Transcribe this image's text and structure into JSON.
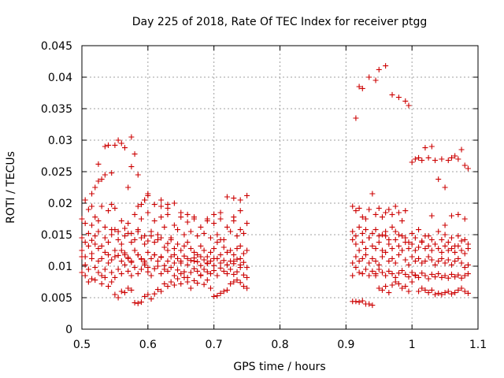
{
  "chart_data": {
    "type": "scatter",
    "title": "Day 225 of 2018, Rate Of TEC Index for receiver ptgg",
    "xlabel": "GPS time / hours",
    "ylabel": "ROTI / TECUs",
    "xlim": [
      0.5,
      1.1
    ],
    "ylim": [
      0,
      0.045
    ],
    "xticks": [
      "0.5",
      "0.6",
      "0.7",
      "0.8",
      "0.9",
      "1",
      "1.1"
    ],
    "yticks": [
      "0",
      "0.005",
      "0.01",
      "0.015",
      "0.02",
      "0.025",
      "0.03",
      "0.035",
      "0.04",
      "0.045"
    ],
    "grid": true,
    "marker": "plus",
    "color": "#cc0000",
    "series": [
      {
        "name": "ROTI",
        "x": [
          0.5,
          0.505,
          0.51,
          0.515,
          0.52,
          0.525,
          0.53,
          0.535,
          0.54,
          0.545,
          0.55,
          0.555,
          0.56,
          0.565,
          0.57,
          0.575,
          0.58,
          0.585,
          0.59,
          0.595,
          0.6,
          0.605,
          0.61,
          0.615,
          0.62,
          0.625,
          0.63,
          0.635,
          0.64,
          0.645,
          0.65,
          0.655,
          0.66,
          0.665,
          0.67,
          0.675,
          0.68,
          0.685,
          0.69,
          0.695,
          0.7,
          0.705,
          0.71,
          0.715,
          0.72,
          0.725,
          0.73,
          0.735,
          0.74,
          0.745,
          0.75,
          0.5,
          0.505,
          0.51,
          0.515,
          0.52,
          0.525,
          0.53,
          0.535,
          0.54,
          0.545,
          0.55,
          0.555,
          0.56,
          0.565,
          0.57,
          0.575,
          0.58,
          0.585,
          0.59,
          0.595,
          0.6,
          0.605,
          0.61,
          0.615,
          0.62,
          0.625,
          0.63,
          0.635,
          0.64,
          0.645,
          0.65,
          0.655,
          0.66,
          0.665,
          0.67,
          0.675,
          0.68,
          0.685,
          0.69,
          0.695,
          0.7,
          0.705,
          0.71,
          0.715,
          0.72,
          0.725,
          0.73,
          0.735,
          0.74,
          0.745,
          0.75,
          0.5,
          0.505,
          0.51,
          0.515,
          0.52,
          0.525,
          0.53,
          0.535,
          0.54,
          0.545,
          0.55,
          0.555,
          0.56,
          0.565,
          0.57,
          0.575,
          0.58,
          0.585,
          0.59,
          0.595,
          0.6,
          0.605,
          0.61,
          0.615,
          0.62,
          0.625,
          0.63,
          0.635,
          0.64,
          0.645,
          0.65,
          0.655,
          0.66,
          0.665,
          0.67,
          0.675,
          0.68,
          0.685,
          0.69,
          0.695,
          0.7,
          0.705,
          0.71,
          0.715,
          0.72,
          0.725,
          0.73,
          0.735,
          0.74,
          0.745,
          0.75,
          0.5,
          0.505,
          0.51,
          0.515,
          0.52,
          0.525,
          0.53,
          0.535,
          0.54,
          0.545,
          0.55,
          0.555,
          0.56,
          0.565,
          0.57,
          0.575,
          0.58,
          0.585,
          0.59,
          0.595,
          0.6,
          0.605,
          0.61,
          0.615,
          0.62,
          0.625,
          0.63,
          0.635,
          0.64,
          0.645,
          0.65,
          0.655,
          0.66,
          0.665,
          0.67,
          0.675,
          0.68,
          0.685,
          0.69,
          0.695,
          0.7,
          0.705,
          0.71,
          0.715,
          0.72,
          0.725,
          0.73,
          0.735,
          0.74,
          0.745,
          0.75,
          0.5,
          0.51,
          0.52,
          0.53,
          0.54,
          0.55,
          0.56,
          0.57,
          0.58,
          0.59,
          0.6,
          0.61,
          0.62,
          0.63,
          0.64,
          0.65,
          0.66,
          0.67,
          0.68,
          0.69,
          0.7,
          0.71,
          0.72,
          0.73,
          0.74,
          0.75,
          0.505,
          0.515,
          0.525,
          0.535,
          0.545,
          0.555,
          0.565,
          0.575,
          0.585,
          0.595,
          0.605,
          0.615,
          0.625,
          0.635,
          0.645,
          0.655,
          0.665,
          0.675,
          0.685,
          0.695,
          0.705,
          0.715,
          0.725,
          0.735,
          0.745,
          0.505,
          0.515,
          0.52,
          0.525,
          0.53,
          0.535,
          0.54,
          0.545,
          0.55,
          0.555,
          0.56,
          0.565,
          0.57,
          0.575,
          0.58,
          0.585,
          0.59,
          0.595,
          0.6,
          0.61,
          0.62,
          0.63,
          0.64,
          0.72,
          0.73,
          0.74,
          0.75,
          0.515,
          0.525,
          0.535,
          0.545,
          0.575,
          0.585,
          0.595,
          0.6,
          0.62,
          0.63,
          0.65,
          0.66,
          0.67,
          0.69,
          0.7,
          0.71,
          0.73,
          0.74,
          0.55,
          0.56,
          0.565,
          0.57,
          0.575,
          0.58,
          0.585,
          0.59,
          0.595,
          0.6,
          0.61,
          0.62,
          0.63,
          0.64,
          0.65,
          0.66,
          0.67,
          0.68,
          0.69,
          0.7,
          0.71,
          0.72,
          0.73,
          0.74,
          0.91,
          0.915,
          0.92,
          0.925,
          0.93,
          0.935,
          0.94,
          0.945,
          0.95,
          0.955,
          0.96,
          0.965,
          0.97,
          0.975,
          0.98,
          0.985,
          0.99,
          0.995,
          1,
          1.005,
          1.01,
          1.015,
          1.02,
          1.025,
          1.03,
          1.035,
          1.04,
          1.045,
          1.05,
          1.055,
          1.06,
          1.065,
          1.07,
          1.075,
          1.08,
          1.085,
          0.91,
          0.915,
          0.92,
          0.925,
          0.93,
          0.935,
          0.94,
          0.945,
          0.95,
          0.955,
          0.96,
          0.965,
          0.97,
          0.975,
          0.98,
          0.985,
          0.99,
          0.995,
          1,
          1.005,
          1.01,
          1.015,
          1.02,
          1.025,
          1.03,
          1.035,
          1.04,
          1.045,
          1.05,
          1.055,
          1.06,
          1.065,
          1.07,
          1.075,
          1.08,
          1.085,
          0.91,
          0.915,
          0.92,
          0.925,
          0.93,
          0.935,
          0.94,
          0.945,
          0.95,
          0.955,
          0.96,
          0.965,
          0.97,
          0.975,
          0.98,
          0.985,
          0.99,
          0.995,
          1,
          1.005,
          1.01,
          1.015,
          1.02,
          1.025,
          1.03,
          1.035,
          1.04,
          1.045,
          1.05,
          1.055,
          1.06,
          1.065,
          1.07,
          1.075,
          1.08,
          1.085,
          0.91,
          0.915,
          0.92,
          0.925,
          0.93,
          0.935,
          0.94,
          0.945,
          0.95,
          0.955,
          0.96,
          0.965,
          0.97,
          0.975,
          0.98,
          0.985,
          0.99,
          0.995,
          1,
          1.005,
          1.01,
          1.015,
          1.02,
          1.025,
          1.03,
          1.035,
          1.04,
          1.045,
          1.05,
          1.055,
          1.06,
          1.065,
          1.07,
          1.075,
          1.08,
          1.085,
          0.91,
          0.92,
          0.93,
          0.94,
          0.95,
          0.96,
          0.97,
          0.98,
          0.99,
          1,
          1.01,
          1.02,
          1.03,
          1.04,
          1.05,
          1.06,
          1.07,
          1.08,
          0.915,
          0.925,
          0.935,
          0.945,
          0.955,
          0.965,
          0.975,
          0.985,
          0.995,
          1.005,
          1.015,
          1.025,
          1.035,
          1.045,
          1.055,
          1.065,
          1.075,
          1.085,
          0.91,
          0.915,
          0.92,
          0.925,
          0.93,
          0.935,
          0.94,
          0.945,
          0.95,
          0.955,
          0.96,
          0.965,
          0.97,
          0.975,
          0.98,
          0.985,
          0.99,
          1.0,
          1.005,
          1.01,
          1.015,
          1.02,
          1.025,
          1.03,
          1.035,
          1.04,
          1.045,
          1.05,
          1.055,
          1.06,
          1.065,
          1.07,
          1.075,
          1.08,
          1.085,
          0.915,
          0.92,
          0.925,
          0.935,
          0.945,
          0.95,
          0.96,
          0.97,
          0.98,
          0.99,
          0.995,
          1.03,
          1.05,
          1.06,
          1.07,
          1.08
        ],
        "y": [
          0.009,
          0.0085,
          0.0075,
          0.008,
          0.0078,
          0.009,
          0.0072,
          0.0082,
          0.0068,
          0.0075,
          0.0055,
          0.005,
          0.006,
          0.0058,
          0.0065,
          0.0062,
          0.0042,
          0.0041,
          0.0043,
          0.0052,
          0.0055,
          0.0048,
          0.0056,
          0.0063,
          0.006,
          0.0072,
          0.0068,
          0.0075,
          0.007,
          0.008,
          0.0072,
          0.0082,
          0.0075,
          0.0065,
          0.0077,
          0.0073,
          0.0085,
          0.0071,
          0.0078,
          0.0065,
          0.0052,
          0.0053,
          0.0057,
          0.006,
          0.0062,
          0.0072,
          0.0075,
          0.0078,
          0.0074,
          0.0068,
          0.0065,
          0.0115,
          0.0102,
          0.0095,
          0.0112,
          0.0098,
          0.0108,
          0.0085,
          0.0095,
          0.0105,
          0.009,
          0.0082,
          0.0095,
          0.0088,
          0.0102,
          0.0092,
          0.0085,
          0.0098,
          0.0088,
          0.0095,
          0.0102,
          0.0091,
          0.0085,
          0.0096,
          0.01,
          0.0088,
          0.0095,
          0.0092,
          0.0098,
          0.0085,
          0.0094,
          0.0088,
          0.0091,
          0.0082,
          0.009,
          0.0096,
          0.0092,
          0.0086,
          0.0095,
          0.0091,
          0.0088,
          0.0093,
          0.0085,
          0.0097,
          0.0092,
          0.0088,
          0.0095,
          0.0087,
          0.0091,
          0.0098,
          0.0086,
          0.0082,
          0.0125,
          0.0115,
          0.0132,
          0.012,
          0.0135,
          0.0128,
          0.0112,
          0.0122,
          0.0118,
          0.011,
          0.0125,
          0.0117,
          0.0108,
          0.0121,
          0.0114,
          0.0106,
          0.0125,
          0.0118,
          0.0111,
          0.0105,
          0.0098,
          0.0112,
          0.0118,
          0.0108,
          0.0114,
          0.0101,
          0.0108,
          0.0115,
          0.0105,
          0.0112,
          0.0108,
          0.0116,
          0.0102,
          0.0109,
          0.0113,
          0.0107,
          0.0101,
          0.011,
          0.0104,
          0.0108,
          0.0101,
          0.0112,
          0.0105,
          0.0109,
          0.0102,
          0.0108,
          0.0104,
          0.0111,
          0.0102,
          0.0106,
          0.0098,
          0.0145,
          0.0138,
          0.0152,
          0.0141,
          0.0148,
          0.0155,
          0.0132,
          0.0145,
          0.0138,
          0.015,
          0.0158,
          0.0142,
          0.0135,
          0.0148,
          0.0152,
          0.0138,
          0.0142,
          0.0155,
          0.0145,
          0.0135,
          0.014,
          0.0148,
          0.0138,
          0.0142,
          0.0145,
          0.013,
          0.0136,
          0.0142,
          0.0128,
          0.0135,
          0.0125,
          0.0132,
          0.0138,
          0.0128,
          0.0122,
          0.0118,
          0.0132,
          0.0125,
          0.0115,
          0.0122,
          0.0128,
          0.0138,
          0.0142,
          0.013,
          0.0122,
          0.0125,
          0.0118,
          0.0128,
          0.0132,
          0.012,
          0.0125,
          0.0175,
          0.019,
          0.0178,
          0.0195,
          0.0188,
          0.0192,
          0.0172,
          0.0168,
          0.0182,
          0.0175,
          0.0185,
          0.0172,
          0.0178,
          0.0182,
          0.0165,
          0.0178,
          0.017,
          0.0175,
          0.0162,
          0.0172,
          0.0168,
          0.0175,
          0.0162,
          0.0172,
          0.0158,
          0.0168,
          0.0168,
          0.0165,
          0.0172,
          0.0162,
          0.0158,
          0.0155,
          0.016,
          0.0152,
          0.0158,
          0.0148,
          0.0155,
          0.015,
          0.0162,
          0.0145,
          0.0158,
          0.015,
          0.0155,
          0.0148,
          0.0152,
          0.0145,
          0.015,
          0.0142,
          0.0155,
          0.0148,
          0.0152,
          0.0205,
          0.0215,
          0.0225,
          0.0262,
          0.0238,
          0.029,
          0.0292,
          0.0248,
          0.0292,
          0.03,
          0.0295,
          0.0288,
          0.0225,
          0.0305,
          0.0278,
          0.0195,
          0.0198,
          0.0205,
          0.0215,
          0.0198,
          0.0195,
          0.0192,
          0.02,
          0.021,
          0.0208,
          0.0205,
          0.0212,
          0.0195,
          0.0235,
          0.0245,
          0.0198,
          0.0258,
          0.0245,
          0.0205,
          0.0212,
          0.0205,
          0.0198,
          0.0185,
          0.0182,
          0.0178,
          0.0175,
          0.0182,
          0.0185,
          0.0178,
          0.0188,
          0.0115,
          0.0125,
          0.0118,
          0.0112,
          0.0108,
          0.0125,
          0.0118,
          0.0112,
          0.0108,
          0.0122,
          0.0118,
          0.0115,
          0.0125,
          0.0118,
          0.0105,
          0.0112,
          0.0108,
          0.0115,
          0.0105,
          0.0112,
          0.0118,
          0.0102,
          0.0108,
          0.0112,
          0.0044,
          0.0044,
          0.0043,
          0.0045,
          0.004,
          0.004,
          0.0038,
          0.0085,
          0.0065,
          0.0062,
          0.0068,
          0.0058,
          0.007,
          0.0075,
          0.0072,
          0.0065,
          0.0068,
          0.006,
          0.0075,
          0.0085,
          0.006,
          0.0065,
          0.0062,
          0.0058,
          0.0062,
          0.0055,
          0.0057,
          0.0055,
          0.0058,
          0.006,
          0.0056,
          0.0058,
          0.0062,
          0.0065,
          0.006,
          0.0057,
          0.0085,
          0.0098,
          0.009,
          0.0088,
          0.0095,
          0.0085,
          0.0092,
          0.0088,
          0.0095,
          0.009,
          0.0085,
          0.0092,
          0.0088,
          0.0082,
          0.0089,
          0.0093,
          0.0087,
          0.0083,
          0.009,
          0.0086,
          0.0082,
          0.0089,
          0.0085,
          0.008,
          0.0087,
          0.0083,
          0.0088,
          0.0082,
          0.0085,
          0.0081,
          0.0087,
          0.0083,
          0.0086,
          0.0081,
          0.0085,
          0.0088,
          0.0105,
          0.0115,
          0.0108,
          0.0112,
          0.0118,
          0.0105,
          0.0112,
          0.0108,
          0.0102,
          0.0115,
          0.0122,
          0.0108,
          0.0112,
          0.0105,
          0.0118,
          0.0125,
          0.011,
          0.0102,
          0.0115,
          0.0108,
          0.0112,
          0.0105,
          0.0108,
          0.0115,
          0.011,
          0.0102,
          0.0108,
          0.0112,
          0.0105,
          0.011,
          0.0102,
          0.0108,
          0.0112,
          0.0105,
          0.0098,
          0.0102,
          0.0142,
          0.0135,
          0.0125,
          0.0138,
          0.0128,
          0.0145,
          0.0132,
          0.0128,
          0.0138,
          0.0125,
          0.0148,
          0.0135,
          0.0128,
          0.0142,
          0.0132,
          0.0125,
          0.0138,
          0.0128,
          0.0135,
          0.0125,
          0.013,
          0.0138,
          0.0128,
          0.0132,
          0.0125,
          0.0135,
          0.0128,
          0.0122,
          0.0132,
          0.0125,
          0.0128,
          0.0122,
          0.0132,
          0.0125,
          0.012,
          0.0128,
          0.0155,
          0.0162,
          0.0158,
          0.0152,
          0.0148,
          0.0155,
          0.0162,
          0.015,
          0.0145,
          0.0152,
          0.0158,
          0.0148,
          0.0142,
          0.0155,
          0.015,
          0.0145,
          0.0148,
          0.0142,
          0.0148,
          0.0152,
          0.0145,
          0.0158,
          0.015,
          0.0142,
          0.0155,
          0.0148,
          0.0138,
          0.0145,
          0.014,
          0.0148,
          0.0135,
          0.0142,
          0.0138,
          0.0132,
          0.014,
          0.0135,
          0.0195,
          0.0188,
          0.0192,
          0.0178,
          0.0175,
          0.019,
          0.0215,
          0.0182,
          0.0192,
          0.0178,
          0.0185,
          0.019,
          0.0182,
          0.0195,
          0.0185,
          0.0172,
          0.0188,
          0.0265,
          0.027,
          0.0272,
          0.0268,
          0.0288,
          0.0272,
          0.029,
          0.0268,
          0.0238,
          0.027,
          0.0225,
          0.0268,
          0.0272,
          0.0275,
          0.027,
          0.0285,
          0.026,
          0.0255,
          0.0335,
          0.0385,
          0.0382,
          0.04,
          0.0395,
          0.0412,
          0.0418,
          0.0372,
          0.0368,
          0.0362,
          0.0355,
          0.018,
          0.0165,
          0.018,
          0.0182,
          0.0175
        ]
      }
    ]
  }
}
